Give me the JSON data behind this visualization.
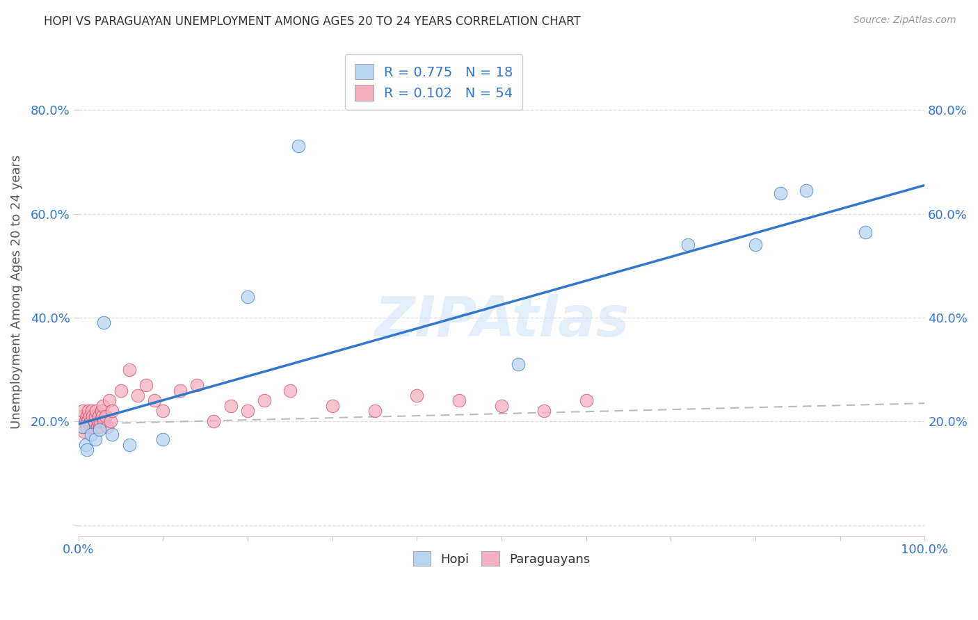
{
  "title": "HOPI VS PARAGUAYAN UNEMPLOYMENT AMONG AGES 20 TO 24 YEARS CORRELATION CHART",
  "source": "Source: ZipAtlas.com",
  "ylabel": "Unemployment Among Ages 20 to 24 years",
  "xlim": [
    0,
    1.0
  ],
  "ylim": [
    -0.02,
    0.92
  ],
  "watermark": "ZIPAtlas",
  "hopi_color": "#b8d4f0",
  "paraguayan_color": "#f4b0c0",
  "hopi_R": 0.775,
  "hopi_N": 18,
  "paraguayan_R": 0.102,
  "paraguayan_N": 54,
  "hopi_line_color": "#3377cc",
  "paraguayan_line_color": "#cc4466",
  "hopi_scatter_x": [
    0.005,
    0.008,
    0.01,
    0.015,
    0.02,
    0.025,
    0.03,
    0.04,
    0.06,
    0.1,
    0.2,
    0.26,
    0.52,
    0.72,
    0.8,
    0.83,
    0.86,
    0.93
  ],
  "hopi_scatter_y": [
    0.19,
    0.155,
    0.145,
    0.175,
    0.165,
    0.185,
    0.39,
    0.175,
    0.155,
    0.165,
    0.44,
    0.73,
    0.31,
    0.54,
    0.54,
    0.64,
    0.645,
    0.565
  ],
  "paraguayan_scatter_x": [
    0.002,
    0.003,
    0.004,
    0.005,
    0.006,
    0.007,
    0.008,
    0.009,
    0.01,
    0.011,
    0.012,
    0.013,
    0.014,
    0.015,
    0.016,
    0.017,
    0.018,
    0.019,
    0.02,
    0.021,
    0.022,
    0.023,
    0.024,
    0.025,
    0.026,
    0.027,
    0.028,
    0.029,
    0.03,
    0.032,
    0.034,
    0.036,
    0.038,
    0.04,
    0.05,
    0.06,
    0.07,
    0.08,
    0.09,
    0.1,
    0.12,
    0.14,
    0.16,
    0.18,
    0.2,
    0.22,
    0.25,
    0.3,
    0.35,
    0.4,
    0.45,
    0.5,
    0.55,
    0.6
  ],
  "paraguayan_scatter_y": [
    0.19,
    0.2,
    0.21,
    0.22,
    0.19,
    0.18,
    0.2,
    0.19,
    0.21,
    0.2,
    0.22,
    0.21,
    0.19,
    0.2,
    0.22,
    0.21,
    0.19,
    0.2,
    0.21,
    0.22,
    0.19,
    0.2,
    0.21,
    0.19,
    0.2,
    0.22,
    0.21,
    0.23,
    0.2,
    0.21,
    0.19,
    0.24,
    0.2,
    0.22,
    0.26,
    0.3,
    0.25,
    0.27,
    0.24,
    0.22,
    0.26,
    0.27,
    0.2,
    0.23,
    0.22,
    0.24,
    0.26,
    0.23,
    0.22,
    0.25,
    0.24,
    0.23,
    0.22,
    0.24
  ],
  "hopi_line_x": [
    0.0,
    1.0
  ],
  "hopi_line_y": [
    0.195,
    0.655
  ],
  "paraguayan_line_x": [
    0.0,
    1.0
  ],
  "paraguayan_line_y": [
    0.195,
    0.235
  ],
  "ytick_positions": [
    0.0,
    0.2,
    0.4,
    0.6,
    0.8
  ],
  "ytick_labels": [
    "",
    "20.0%",
    "40.0%",
    "60.0%",
    "80.0%"
  ],
  "xtick_positions": [
    0.0,
    0.1,
    0.2,
    0.3,
    0.4,
    0.5,
    0.6,
    0.7,
    0.8,
    0.9,
    1.0
  ],
  "xtick_labels": [
    "0.0%",
    "",
    "",
    "",
    "",
    "",
    "",
    "",
    "",
    "",
    "100.0%"
  ],
  "grid_color": "#dddddd",
  "title_fontsize": 12,
  "label_fontsize": 13,
  "tick_fontsize": 13,
  "source_fontsize": 10
}
